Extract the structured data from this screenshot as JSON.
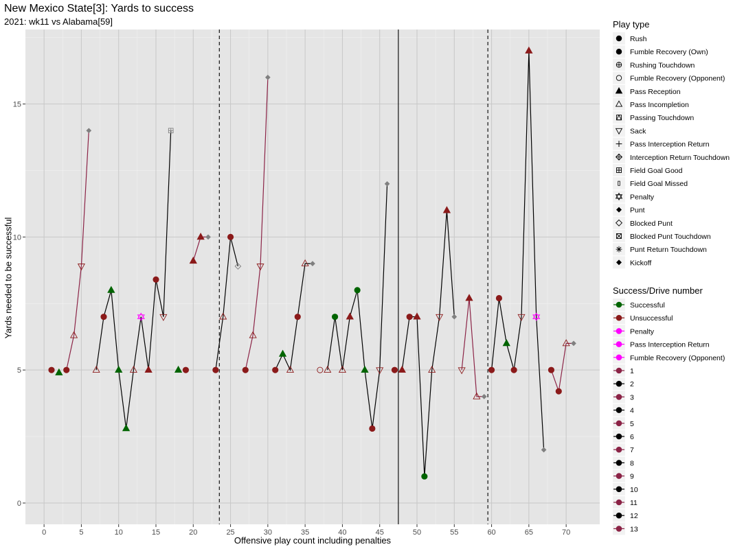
{
  "chart_data": {
    "type": "scatter",
    "title": "New Mexico State[3]: Yards to success",
    "subtitle": "2021: wk11 vs Alabama[59]",
    "xlabel": "Offensive play count including penalties",
    "ylabel": "Yards needed to be successful",
    "xlim": [
      -2.5,
      74.5
    ],
    "ylim": [
      -0.8,
      17.8
    ],
    "x_ticks": [
      0,
      5,
      10,
      15,
      20,
      25,
      30,
      35,
      40,
      45,
      50,
      55,
      60,
      65,
      70
    ],
    "y_ticks": [
      0,
      5,
      10,
      15
    ],
    "grid": true,
    "legend_position": "right",
    "vlines": [
      {
        "x": 23.5,
        "style": "dashed"
      },
      {
        "x": 47.5,
        "style": "solid"
      },
      {
        "x": 59.5,
        "style": "dashed"
      }
    ],
    "colors": {
      "Successful": "#006400",
      "Unsuccessful": "#8B1A1A",
      "Penalty": "#FF00FF",
      "drive_odd": "#8B2346",
      "drive_even": "#000000",
      "end_marker": "#808080"
    },
    "drives": [
      {
        "drive": 1,
        "points": [
          [
            1,
            5,
            "rush",
            "Unsuccessful"
          ]
        ]
      },
      {
        "drive": 2,
        "points": [
          [
            2,
            4.9,
            "pass_reception",
            "Successful"
          ]
        ]
      },
      {
        "drive": 3,
        "points": [
          [
            3,
            5,
            "rush",
            "Unsuccessful"
          ],
          [
            4,
            6.3,
            "pass_incompletion",
            "Unsuccessful"
          ],
          [
            5,
            8.9,
            "sack",
            "Unsuccessful"
          ],
          [
            6,
            14,
            "punt",
            "end"
          ]
        ]
      },
      {
        "drive": 4,
        "points": [
          [
            7,
            5,
            "pass_incompletion",
            "Unsuccessful"
          ],
          [
            8,
            7,
            "rush",
            "Unsuccessful"
          ],
          [
            9,
            8,
            "pass_reception",
            "Successful"
          ],
          [
            10,
            5,
            "pass_reception",
            "Successful"
          ],
          [
            11,
            2.8,
            "pass_reception",
            "Successful"
          ],
          [
            12,
            5,
            "pass_incompletion",
            "Unsuccessful"
          ],
          [
            13,
            7,
            "penalty",
            "Penalty"
          ],
          [
            14,
            5,
            "pass_reception",
            "Unsuccessful"
          ],
          [
            15,
            8.4,
            "rush",
            "Unsuccessful"
          ],
          [
            16,
            7,
            "sack",
            "Unsuccessful"
          ],
          [
            17,
            14,
            "field_goal_good",
            "end"
          ]
        ]
      },
      {
        "drive": 5,
        "points": [
          [
            18,
            5,
            "pass_reception",
            "Successful"
          ]
        ]
      },
      {
        "drive": 6,
        "points": [
          [
            19,
            5,
            "rush",
            "Unsuccessful"
          ]
        ]
      },
      {
        "drive": 7,
        "points": [
          [
            20,
            9.1,
            "pass_reception",
            "Unsuccessful"
          ],
          [
            21,
            10,
            "pass_reception",
            "Unsuccessful"
          ],
          [
            22,
            10,
            "punt",
            "end"
          ]
        ]
      },
      {
        "drive": 8,
        "points": [
          [
            23,
            5,
            "rush",
            "Unsuccessful"
          ],
          [
            24,
            7,
            "pass_incompletion",
            "Unsuccessful"
          ],
          [
            25,
            10,
            "rush",
            "Unsuccessful"
          ],
          [
            26,
            8.9,
            "blocked_punt",
            "end"
          ]
        ]
      },
      {
        "drive": 9,
        "points": [
          [
            27,
            5,
            "rush",
            "Unsuccessful"
          ],
          [
            28,
            6.3,
            "pass_incompletion",
            "Unsuccessful"
          ],
          [
            29,
            8.9,
            "sack",
            "Unsuccessful"
          ],
          [
            30,
            16,
            "punt",
            "end"
          ]
        ]
      },
      {
        "drive": 10,
        "points": [
          [
            31,
            5,
            "rush",
            "Unsuccessful"
          ],
          [
            32,
            5.6,
            "pass_reception",
            "Successful"
          ],
          [
            33,
            5,
            "pass_incompletion",
            "Unsuccessful"
          ],
          [
            34,
            7,
            "rush",
            "Unsuccessful"
          ],
          [
            35,
            9,
            "pass_incompletion",
            "Unsuccessful"
          ],
          [
            36,
            9,
            "punt",
            "end"
          ]
        ]
      },
      {
        "drive": 11,
        "points": [
          [
            37,
            5,
            "fumble_opp",
            "Unsuccessful"
          ]
        ]
      },
      {
        "drive": 12,
        "points": [
          [
            38,
            5,
            "pass_incompletion",
            "Unsuccessful"
          ],
          [
            39,
            7,
            "rush",
            "Successful"
          ],
          [
            40,
            5,
            "pass_incompletion",
            "Unsuccessful"
          ],
          [
            41,
            7,
            "pass_reception",
            "Unsuccessful"
          ],
          [
            42,
            8,
            "rush",
            "Successful"
          ],
          [
            43,
            5,
            "pass_reception",
            "Successful"
          ],
          [
            44,
            2.8,
            "rush",
            "Unsuccessful"
          ],
          [
            45,
            5,
            "sack",
            "Unsuccessful"
          ],
          [
            46,
            12,
            "punt",
            "end"
          ]
        ]
      },
      {
        "drive": 12,
        "points": [
          [
            47,
            5,
            "rush",
            "Unsuccessful"
          ]
        ]
      },
      {
        "drive": 12,
        "points": [
          [
            48,
            5,
            "pass_reception",
            "Unsuccessful"
          ],
          [
            49,
            7,
            "rush",
            "Unsuccessful"
          ],
          [
            50,
            7,
            "pass_reception",
            "Unsuccessful"
          ],
          [
            51,
            1,
            "rush",
            "Successful"
          ],
          [
            52,
            5,
            "pass_incompletion",
            "Unsuccessful"
          ],
          [
            53,
            7,
            "sack",
            "Unsuccessful"
          ],
          [
            54,
            11,
            "pass_reception",
            "Unsuccessful"
          ],
          [
            55,
            7,
            "punt",
            "end"
          ]
        ]
      },
      {
        "drive": 13,
        "points": [
          [
            56,
            5,
            "sack",
            "Unsuccessful"
          ],
          [
            57,
            7.7,
            "pass_reception",
            "Unsuccessful"
          ],
          [
            58,
            4,
            "pass_incompletion",
            "Unsuccessful"
          ],
          [
            59,
            4,
            "punt",
            "end"
          ]
        ]
      },
      {
        "drive": 12,
        "points": [
          [
            60,
            5,
            "rush",
            "Unsuccessful"
          ],
          [
            61,
            7.7,
            "rush",
            "Unsuccessful"
          ],
          [
            62,
            6,
            "pass_reception",
            "Successful"
          ],
          [
            63,
            5,
            "rush",
            "Unsuccessful"
          ],
          [
            64,
            7,
            "sack",
            "Unsuccessful"
          ],
          [
            65,
            17,
            "pass_reception",
            "Unsuccessful"
          ],
          [
            66,
            7,
            "penalty",
            "Penalty"
          ],
          [
            67,
            2,
            "punt",
            "end"
          ]
        ]
      },
      {
        "drive": 13,
        "points": [
          [
            68,
            5,
            "rush",
            "Unsuccessful"
          ],
          [
            69,
            4.2,
            "rush",
            "Unsuccessful"
          ],
          [
            70,
            6,
            "pass_incompletion",
            "Unsuccessful"
          ],
          [
            71,
            6,
            "punt",
            "end"
          ]
        ]
      }
    ]
  },
  "legend": {
    "play_type_title": "Play type",
    "play_types": [
      {
        "label": "Rush",
        "icon": "filled-circle"
      },
      {
        "label": "Fumble Recovery (Own)",
        "icon": "filled-circle"
      },
      {
        "label": "Rushing Touchdown",
        "icon": "circle-plus"
      },
      {
        "label": "Fumble Recovery (Opponent)",
        "icon": "open-circle"
      },
      {
        "label": "Pass Reception",
        "icon": "filled-triangle"
      },
      {
        "label": "Pass Incompletion",
        "icon": "open-triangle"
      },
      {
        "label": "Passing Touchdown",
        "icon": "square-triangle"
      },
      {
        "label": "Sack",
        "icon": "open-triangle-down"
      },
      {
        "label": "Pass Interception Return",
        "icon": "plus"
      },
      {
        "label": "Interception Return Touchdown",
        "icon": "diamond-plus"
      },
      {
        "label": "Field Goal Good",
        "icon": "square-plus"
      },
      {
        "label": "Field Goal Missed",
        "icon": "small-bar"
      },
      {
        "label": "Penalty",
        "icon": "star-of-david"
      },
      {
        "label": "Punt",
        "icon": "filled-diamond"
      },
      {
        "label": "Blocked Punt",
        "icon": "open-diamond"
      },
      {
        "label": "Blocked Punt Touchdown",
        "icon": "square-x"
      },
      {
        "label": "Punt Return Touchdown",
        "icon": "asterisk"
      },
      {
        "label": "Kickoff",
        "icon": "filled-diamond"
      }
    ],
    "success_title": "Success/Drive number",
    "success_items": [
      {
        "label": "Successful",
        "color": "#006400"
      },
      {
        "label": "Unsuccessful",
        "color": "#8B1A1A"
      },
      {
        "label": "Penalty",
        "color": "#FF00FF"
      },
      {
        "label": "Pass Interception Return",
        "color": "#FF00FF"
      },
      {
        "label": "Fumble Recovery (Opponent)",
        "color": "#FF00FF"
      },
      {
        "label": "1",
        "color": "#8B2346"
      },
      {
        "label": "2",
        "color": "#000000"
      },
      {
        "label": "3",
        "color": "#8B2346"
      },
      {
        "label": "4",
        "color": "#000000"
      },
      {
        "label": "5",
        "color": "#8B2346"
      },
      {
        "label": "6",
        "color": "#000000"
      },
      {
        "label": "7",
        "color": "#8B2346"
      },
      {
        "label": "8",
        "color": "#000000"
      },
      {
        "label": "9",
        "color": "#8B2346"
      },
      {
        "label": "10",
        "color": "#000000"
      },
      {
        "label": "11",
        "color": "#8B2346"
      },
      {
        "label": "12",
        "color": "#000000"
      },
      {
        "label": "13",
        "color": "#8B2346"
      }
    ]
  }
}
